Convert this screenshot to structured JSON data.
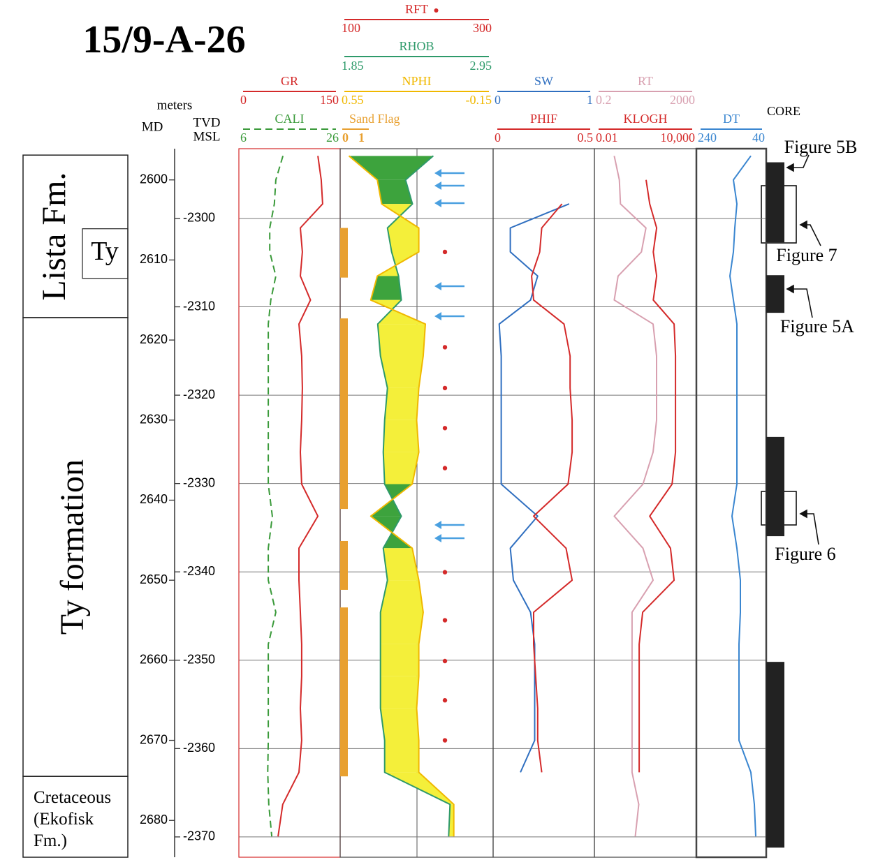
{
  "chart_data": {
    "type": "log",
    "title": "15/9-A-26",
    "depth_units": "meters",
    "md_label": "MD",
    "tvd_label": [
      "TVD",
      "MSL"
    ],
    "ylim": [
      2596.1,
      2684.6
    ],
    "yticks": [
      2600,
      2610,
      2620,
      2630,
      2640,
      2650,
      2660,
      2670,
      2680
    ],
    "y2lim": [
      -2292.1,
      -2372.3
    ],
    "y2ticks": [
      -2300,
      -2310,
      -2320,
      -2330,
      -2340,
      -2350,
      -2360,
      -2370
    ],
    "grid": true,
    "depth": [
      2597,
      2600,
      2603,
      2606,
      2609,
      2612,
      2615,
      2618,
      2622,
      2626,
      2630,
      2634,
      2638,
      2642,
      2646,
      2650,
      2654,
      2658,
      2662,
      2666,
      2670,
      2674,
      2678,
      2682
    ],
    "tracks": [
      {
        "series": [
          {
            "name": "GR",
            "style": "line",
            "color": "#d42a2a",
            "scale": [
              0,
              150
            ],
            "values": [
              117,
              122,
              124,
              91,
              94,
              91,
              106,
              89,
              93,
              94,
              93,
              91,
              93,
              117,
              89,
              89,
              91,
              93,
              93,
              91,
              93,
              89,
              65,
              58
            ]
          },
          {
            "name": "CALI",
            "style": "dashed",
            "color": "#3a9a3a",
            "scale": [
              6,
              26
            ],
            "values": [
              14.7,
              13.3,
              13.0,
              12.1,
              12.1,
              13.3,
              12.3,
              11.8,
              11.8,
              11.8,
              11.8,
              11.8,
              11.8,
              12.6,
              11.8,
              11.8,
              13.3,
              11.8,
              11.8,
              11.8,
              11.8,
              11.7,
              11.9,
              12.5
            ]
          }
        ]
      },
      {
        "series": [
          {
            "name": "RFT",
            "style": "points",
            "color": "#d42a2a",
            "scale": [
              100,
              300
            ],
            "depth": [
              2609.0,
              2620.9,
              2626.0,
              2631.0,
              2636.0,
              2649.0,
              2655.0,
              2660.1,
              2665.0,
              2670.0
            ],
            "values": [
              237,
              237,
              237,
              237,
              237,
              237,
              237,
              237,
              237,
              237
            ]
          },
          {
            "name": "RHOB",
            "style": "line",
            "color": "#2e9a6a",
            "scale": [
              1.85,
              2.95
            ],
            "values": [
              2.52,
              2.32,
              2.37,
              2.19,
              2.22,
              2.27,
              2.29,
              2.12,
              2.14,
              2.19,
              2.17,
              2.16,
              2.17,
              2.29,
              2.16,
              2.19,
              2.14,
              2.14,
              2.14,
              2.14,
              2.17,
              2.17,
              2.64,
              2.63
            ]
          },
          {
            "name": "NPHI",
            "style": "line",
            "color": "#f0b800",
            "scale": [
              0.55,
              -0.15
            ],
            "values": [
              0.51,
              0.38,
              0.36,
              0.19,
              0.19,
              0.38,
              0.41,
              0.16,
              0.17,
              0.19,
              0.2,
              0.19,
              0.22,
              0.41,
              0.22,
              0.19,
              0.17,
              0.19,
              0.19,
              0.2,
              0.19,
              0.19,
              0.03,
              0.03
            ]
          },
          {
            "name": "Sand Flag",
            "style": "intervals",
            "color": "#e8a030",
            "scale": [
              0,
              1
            ],
            "intervals": [
              [
                2606.0,
                2612.2
              ],
              [
                2617.3,
                2641.1
              ],
              [
                2645.1,
                2651.2
              ],
              [
                2653.4,
                2674.5
              ]
            ]
          }
        ]
      },
      {
        "series": [
          {
            "name": "SW",
            "style": "line",
            "color": "#2f6fc0",
            "scale": [
              0,
              1
            ],
            "values": [
              null,
              null,
              0.75,
              0.17,
              0.17,
              0.44,
              0.37,
              0.06,
              0.08,
              0.08,
              0.08,
              0.08,
              0.08,
              0.44,
              0.17,
              0.2,
              0.37,
              0.41,
              0.41,
              0.41,
              0.41,
              0.27,
              null,
              null
            ]
          },
          {
            "name": "PHIF",
            "style": "line",
            "color": "#d42a2a",
            "scale": [
              0,
              0.5
            ],
            "values": [
              null,
              null,
              0.34,
              0.24,
              0.23,
              0.19,
              0.2,
              0.35,
              0.38,
              0.38,
              0.39,
              0.39,
              0.37,
              0.2,
              0.36,
              0.39,
              0.2,
              0.2,
              0.21,
              0.22,
              0.22,
              0.24,
              null,
              null
            ]
          }
        ]
      },
      {
        "series": [
          {
            "name": "RT",
            "style": "line",
            "log": true,
            "color": "#d8a0b0",
            "scale": [
              0.2,
              2000
            ],
            "values": [
              1.2,
              1.9,
              2.1,
              21,
              14,
              1.7,
              1.2,
              40,
              55,
              55,
              55,
              40,
              16,
              1.2,
              16,
              40,
              6,
              6,
              6,
              6,
              6,
              6,
              11,
              8
            ]
          },
          {
            "name": "KLOGH",
            "style": "line",
            "log": true,
            "color": "#d42a2a",
            "scale": [
              0.01,
              {
                "value": 10000,
                "label": "10,000"
              }
            ],
            "values": [
              null,
              11,
              18,
              46,
              29,
              46,
              29,
              490,
              590,
              590,
              590,
              590,
              370,
              18,
              300,
              490,
              6.9,
              4.3,
              4.3,
              4.3,
              4.3,
              4.3,
              null,
              null
            ]
          }
        ]
      },
      {
        "series": [
          {
            "name": "DT",
            "style": "line",
            "color": "#3a86d0",
            "scale": [
              240,
              40
            ],
            "values": [
              84,
              134,
              124,
              130,
              134,
              144,
              134,
              124,
              124,
              124,
              124,
              124,
              124,
              138,
              124,
              114,
              114,
              118,
              118,
              118,
              118,
              84,
              74,
              70
            ]
          }
        ]
      }
    ],
    "fill": {
      "crossover_color": "#f4ef3a",
      "separation_color": "#3da33d"
    },
    "zones": [
      {
        "label": [
          "Lista Fm."
        ],
        "top": 2596.9,
        "base": 2617.2,
        "subzones": [
          {
            "label": [
              "Ty"
            ],
            "top": 2606.1,
            "base": 2612.3
          }
        ]
      },
      {
        "label": [
          "Ty formation"
        ],
        "top": 2617.2,
        "base": 2674.5
      },
      {
        "label": [
          "Cretaceous",
          "(Ekofisk",
          "Fm.)"
        ],
        "top": 2674.5,
        "base": 2684.6
      }
    ],
    "core": {
      "label": "CORE",
      "color": "#222222",
      "intervals": [
        [
          2597.8,
          2607.8
        ],
        [
          2611.9,
          2616.6
        ],
        [
          2632.1,
          2644.5
        ],
        [
          2660.2,
          2683.4
        ]
      ]
    },
    "annotations": [
      "Figure 5B",
      "Figure 7",
      "Figure 5A",
      "Figure 6"
    ]
  }
}
